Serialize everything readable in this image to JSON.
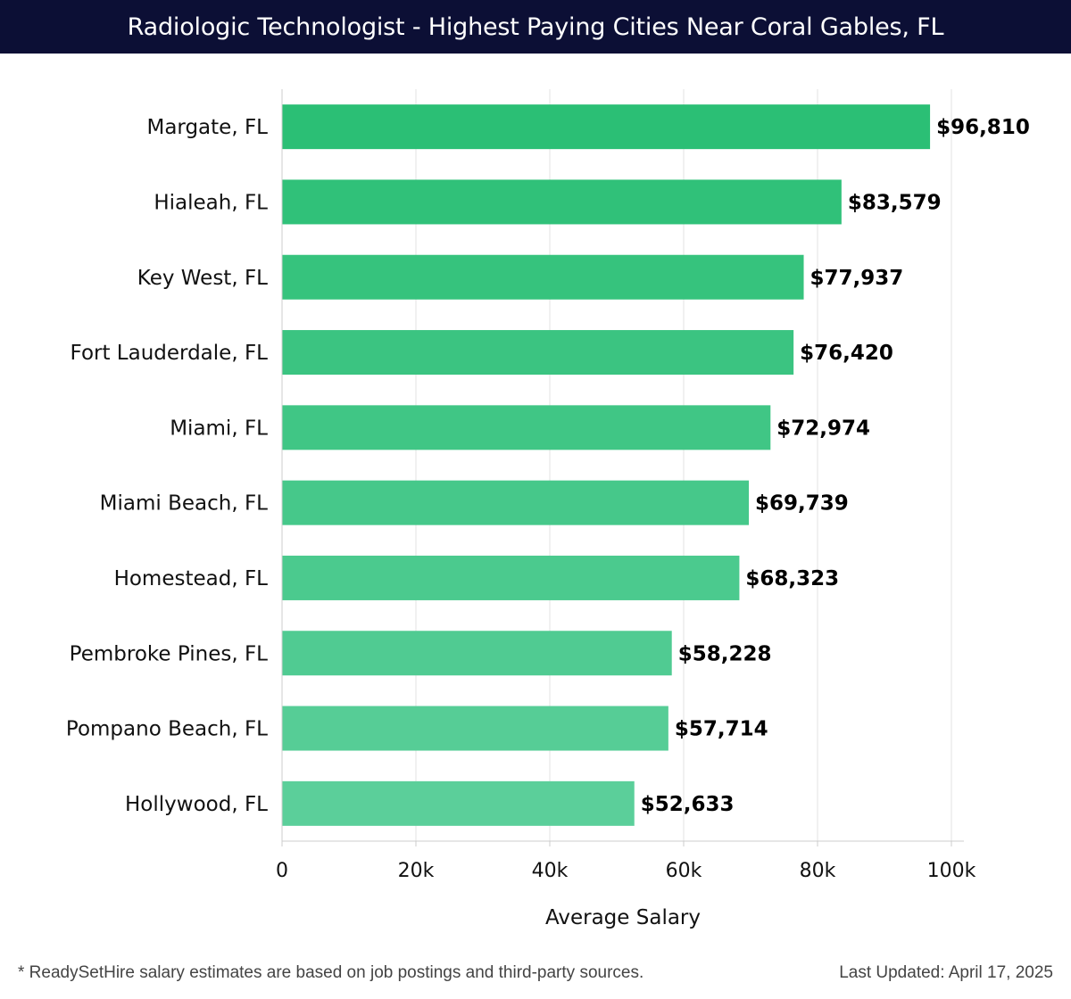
{
  "header": {
    "title": "Radiologic Technologist - Highest Paying Cities Near Coral Gables, FL"
  },
  "footer": {
    "note": "* ReadySetHire salary estimates are based on job postings and third-party sources.",
    "updated": "Last Updated: April 17, 2025"
  },
  "chart_data": {
    "type": "bar",
    "orientation": "horizontal",
    "title": "Radiologic Technologist - Highest Paying Cities Near Coral Gables, FL",
    "xlabel": "Average Salary",
    "ylabel": "",
    "xlim": [
      0,
      100000
    ],
    "grid": true,
    "legend": "none",
    "categories": [
      "Margate, FL",
      "Hialeah, FL",
      "Key West, FL",
      "Fort Lauderdale, FL",
      "Miami, FL",
      "Miami Beach, FL",
      "Homestead, FL",
      "Pembroke Pines, FL",
      "Pompano Beach, FL",
      "Hollywood, FL"
    ],
    "values": [
      96810,
      83579,
      77937,
      76420,
      72974,
      69739,
      68323,
      58228,
      57714,
      52633
    ],
    "value_labels": [
      "$96,810",
      "$83,579",
      "$77,937",
      "$76,420",
      "$72,974",
      "$69,739",
      "$68,323",
      "$58,228",
      "$57,714",
      "$52,633"
    ],
    "xticks": [
      0,
      20000,
      40000,
      60000,
      80000,
      100000
    ],
    "xtick_labels": [
      "0",
      "20k",
      "40k",
      "60k",
      "80k",
      "100k"
    ],
    "colors": {
      "bar_top": "#2bbf75",
      "bar_bottom": "#5bcf9a",
      "grid": "#e3e3e3",
      "axis": "#cccccc",
      "text": "#111111",
      "header_bg": "#0c0f35"
    }
  }
}
